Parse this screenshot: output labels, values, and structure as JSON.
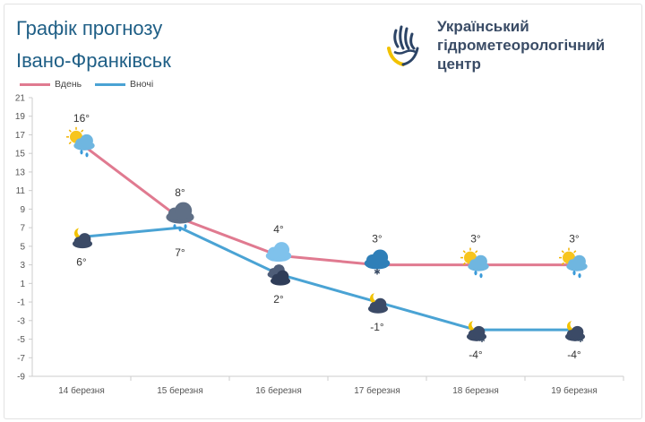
{
  "header": {
    "title": "Графік прогнозу",
    "city": "Івано-Франківськ",
    "org_line1": "Український",
    "org_line2": "гідрометеорологічний",
    "org_line3": "центр"
  },
  "colors": {
    "day": "#e07a90",
    "night": "#4aa3d4",
    "axis": "#cccccc"
  },
  "chart_data": {
    "type": "line",
    "categories": [
      "14 березня",
      "15 березня",
      "16 березня",
      "17 березня",
      "18 березня",
      "19 березня"
    ],
    "series": [
      {
        "name": "Вдень",
        "values": [
          16,
          8,
          4,
          3,
          3,
          3
        ],
        "labels": [
          "16°",
          "8°",
          "4°",
          "3°",
          "3°",
          "3°"
        ],
        "icons": [
          "sun-cloud-rain-icon",
          "rain-cloud-icon",
          "cloud-icon",
          "cloud-snow-icon",
          "sun-cloud-rain-icon",
          "sun-cloud-rain-icon"
        ]
      },
      {
        "name": "Вночі",
        "values": [
          6,
          7,
          2,
          -1,
          -4,
          -4
        ],
        "labels": [
          "6°",
          "7°",
          "2°",
          "-1°",
          "-4°",
          "-4°"
        ],
        "icons": [
          "moon-cloud-icon",
          "rain-cloud-icon",
          "dark-cloud-icon",
          "moon-cloud-icon",
          "moon-cloud-snow-icon",
          "moon-cloud-snow-icon"
        ]
      }
    ],
    "y_ticks": [
      21,
      19,
      17,
      15,
      13,
      11,
      9,
      7,
      5,
      3,
      1,
      -1,
      -3,
      -5,
      -7,
      -9
    ],
    "ylim": [
      -9,
      21
    ]
  }
}
